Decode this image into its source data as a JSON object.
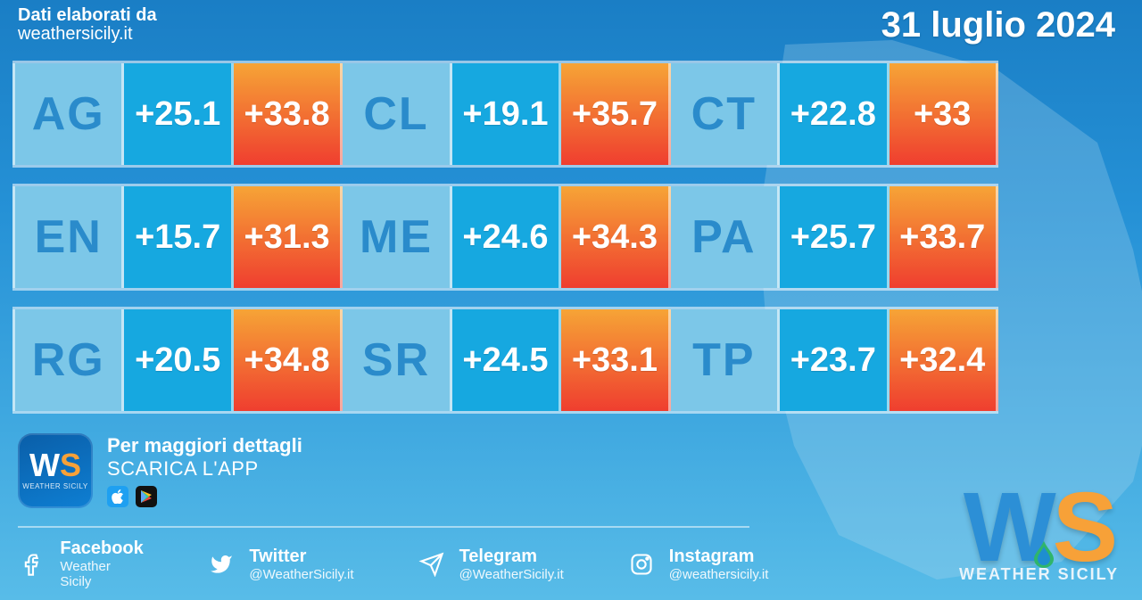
{
  "header": {
    "credit_line1": "Dati elaborati da",
    "credit_line2": "weathersicily.it",
    "date": "31 luglio 2024"
  },
  "colors": {
    "code_bg": "#7cc7e8",
    "code_text": "#2a8bcb",
    "min_bg": "#16a8e0",
    "max_gradient_from": "#f6a436",
    "max_gradient_to": "#ef3e2f",
    "cell_text": "#ffffff",
    "border": "rgba(255,255,255,.55)"
  },
  "table": {
    "rows": [
      [
        {
          "code": "AG",
          "min": "+25.1",
          "max": "+33.8"
        },
        {
          "code": "CL",
          "min": "+19.1",
          "max": "+35.7"
        },
        {
          "code": "CT",
          "min": "+22.8",
          "max": "+33"
        }
      ],
      [
        {
          "code": "EN",
          "min": "+15.7",
          "max": "+31.3"
        },
        {
          "code": "ME",
          "min": "+24.6",
          "max": "+34.3"
        },
        {
          "code": "PA",
          "min": "+25.7",
          "max": "+33.7"
        }
      ],
      [
        {
          "code": "RG",
          "min": "+20.5",
          "max": "+34.8"
        },
        {
          "code": "SR",
          "min": "+24.5",
          "max": "+33.1"
        },
        {
          "code": "TP",
          "min": "+23.7",
          "max": "+32.4"
        }
      ]
    ]
  },
  "app_cta": {
    "line1": "Per maggiori dettagli",
    "line2": "SCARICA L'APP",
    "badge_sub": "WEATHER SICILY"
  },
  "socials": [
    {
      "icon": "facebook",
      "name": "Facebook",
      "handle": "Weather Sicily"
    },
    {
      "icon": "twitter",
      "name": "Twitter",
      "handle": "@WeatherSicily.it"
    },
    {
      "icon": "telegram",
      "name": "Telegram",
      "handle": "@WeatherSicily.it"
    },
    {
      "icon": "instagram",
      "name": "Instagram",
      "handle": "@weathersicily.it"
    }
  ],
  "logo": {
    "brand_sub": "WEATHER SICILY"
  }
}
